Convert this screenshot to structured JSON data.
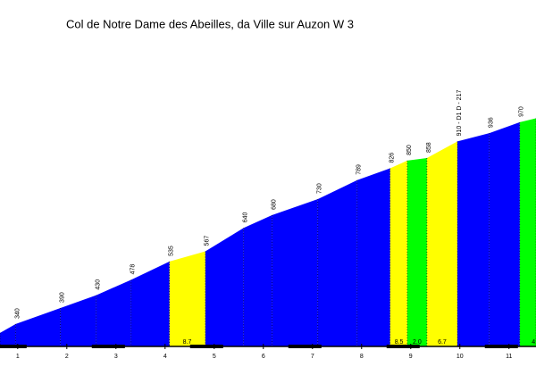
{
  "chart_data": {
    "type": "climb-profile",
    "title": "Col de Notre Dame des Abeilles, da Ville sur Auzon W 3",
    "x": [
      0.64,
      0.96,
      1.87,
      2.6,
      3.31,
      4.09,
      4.82,
      5.6,
      6.18,
      7.11,
      7.91,
      8.58,
      8.93,
      9.33,
      9.95,
      10.6,
      11.22,
      11.55
    ],
    "values": [
      312,
      340,
      390,
      430,
      478,
      535,
      567,
      640,
      680,
      730,
      789,
      826,
      850,
      858,
      910,
      936,
      970,
      982
    ],
    "point_labels": [
      null,
      340,
      390,
      430,
      478,
      535,
      567,
      640,
      680,
      730,
      789,
      826,
      850,
      858,
      {
        "value": 910,
        "label": "910 - D1 D - 217"
      },
      936,
      970,
      null
    ],
    "segment_colors": [
      "#0000ff",
      "#0000ff",
      "#0000ff",
      "#0000ff",
      "#0000ff",
      "#ffff00",
      "#0000ff",
      "#0000ff",
      "#0000ff",
      "#0000ff",
      "#0000ff",
      "#ffff00",
      "#00ff00",
      "#ffff00",
      "#0000ff",
      "#0000ff",
      "#00ff00"
    ],
    "gradient_x": [
      4.45,
      8.76,
      9.13,
      9.64,
      11.5
    ],
    "gradients": [
      8.7,
      8.5,
      {
        "value": 2,
        "label": "2.0"
      },
      6.7,
      4
    ],
    "xlim": [
      0.64,
      11.55
    ],
    "ylim": [
      270,
      1240
    ],
    "xticks": [
      1,
      2,
      3,
      4,
      5,
      6,
      7,
      8,
      9,
      10,
      11
    ]
  }
}
